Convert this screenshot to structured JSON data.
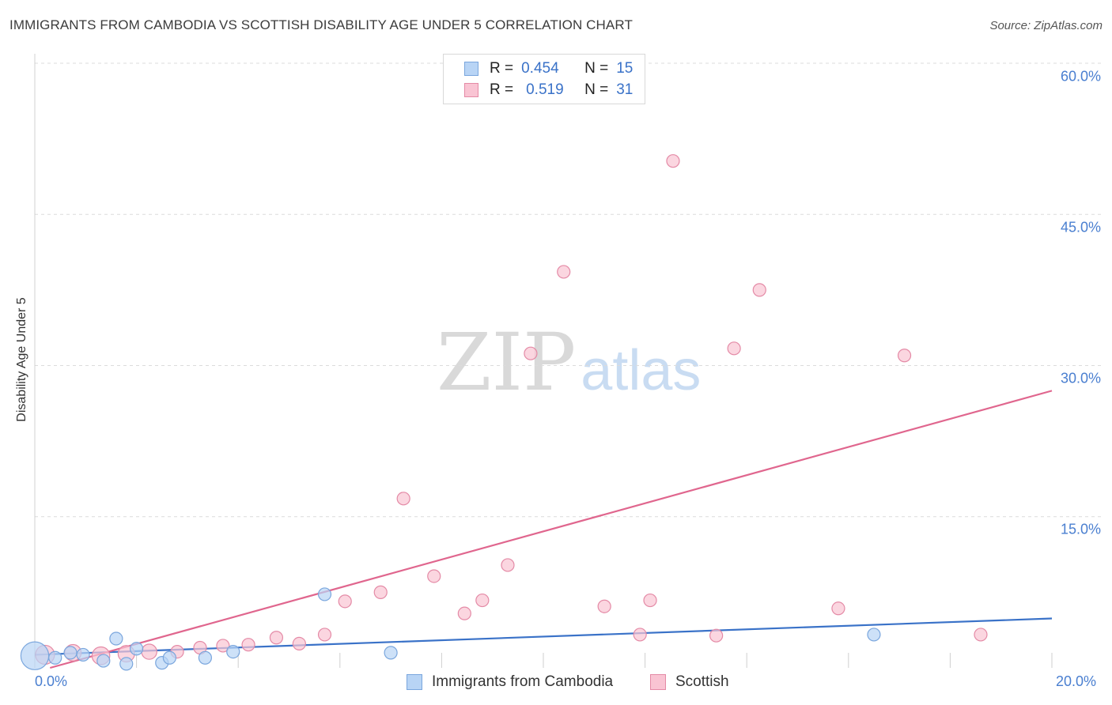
{
  "header": {
    "title": "IMMIGRANTS FROM CAMBODIA VS SCOTTISH DISABILITY AGE UNDER 5 CORRELATION CHART",
    "source": "Source: ZipAtlas.com"
  },
  "watermark": {
    "zip": "ZIP",
    "atlas": "atlas"
  },
  "legend": {
    "rows": [
      {
        "r_label": "R =",
        "r_value": "0.454",
        "n_label": "N =",
        "n_value": "15"
      },
      {
        "r_label": "R =",
        "r_value": "0.519",
        "n_label": "N =",
        "n_value": "31"
      }
    ]
  },
  "colors": {
    "blue_fill": "#b8d4f5",
    "blue_stroke": "#7aa6dd",
    "blue_line": "#3a72c8",
    "pink_fill": "#f9c4d3",
    "pink_stroke": "#e48aa6",
    "pink_line": "#e0668e",
    "grid": "#dcdcdc",
    "tick_label": "#4a7fd0"
  },
  "chart_data": {
    "type": "scatter",
    "title": "IMMIGRANTS FROM CAMBODIA VS SCOTTISH DISABILITY AGE UNDER 5 CORRELATION CHART",
    "xlabel": "",
    "ylabel": "Disability Age Under 5",
    "xlim": [
      0,
      20
    ],
    "ylim": [
      0,
      60
    ],
    "x_tick_labels": [
      "0.0%",
      "20.0%"
    ],
    "y_ticks": [
      15,
      30,
      45,
      60
    ],
    "y_tick_labels": [
      "15.0%",
      "30.0%",
      "45.0%",
      "60.0%"
    ],
    "series": [
      {
        "name": "Immigrants from Cambodia",
        "color": "blue",
        "points": [
          {
            "x": 0.0,
            "y": 1.2,
            "s": 2.2
          },
          {
            "x": 0.4,
            "y": 1.0,
            "s": 1
          },
          {
            "x": 0.7,
            "y": 1.5,
            "s": 1
          },
          {
            "x": 0.95,
            "y": 1.3,
            "s": 1
          },
          {
            "x": 1.35,
            "y": 0.7,
            "s": 1
          },
          {
            "x": 1.6,
            "y": 2.9,
            "s": 1
          },
          {
            "x": 1.8,
            "y": 0.4,
            "s": 1
          },
          {
            "x": 2.0,
            "y": 1.9,
            "s": 1
          },
          {
            "x": 2.5,
            "y": 0.5,
            "s": 1
          },
          {
            "x": 2.65,
            "y": 1.0,
            "s": 1
          },
          {
            "x": 3.35,
            "y": 1.0,
            "s": 1
          },
          {
            "x": 3.9,
            "y": 1.6,
            "s": 1
          },
          {
            "x": 5.7,
            "y": 7.3,
            "s": 1
          },
          {
            "x": 7.0,
            "y": 1.5,
            "s": 1
          },
          {
            "x": 16.5,
            "y": 3.3,
            "s": 1
          }
        ],
        "trend": {
          "x": [
            0,
            20
          ],
          "y": [
            1.3,
            4.9
          ]
        }
      },
      {
        "name": "Scottish",
        "color": "pink",
        "points": [
          {
            "x": 0.2,
            "y": 1.3,
            "s": 1.5
          },
          {
            "x": 0.75,
            "y": 1.5,
            "s": 1.3
          },
          {
            "x": 1.3,
            "y": 1.2,
            "s": 1.4
          },
          {
            "x": 1.8,
            "y": 1.4,
            "s": 1.3
          },
          {
            "x": 2.25,
            "y": 1.6,
            "s": 1.2
          },
          {
            "x": 2.8,
            "y": 1.6,
            "s": 1
          },
          {
            "x": 3.25,
            "y": 2.0,
            "s": 1
          },
          {
            "x": 3.7,
            "y": 2.2,
            "s": 1
          },
          {
            "x": 4.2,
            "y": 2.3,
            "s": 1
          },
          {
            "x": 4.75,
            "y": 3.0,
            "s": 1
          },
          {
            "x": 5.2,
            "y": 2.4,
            "s": 1
          },
          {
            "x": 5.7,
            "y": 3.3,
            "s": 1
          },
          {
            "x": 6.1,
            "y": 6.6,
            "s": 1
          },
          {
            "x": 6.8,
            "y": 7.5,
            "s": 1
          },
          {
            "x": 7.25,
            "y": 16.8,
            "s": 1
          },
          {
            "x": 7.85,
            "y": 9.1,
            "s": 1
          },
          {
            "x": 8.45,
            "y": 5.4,
            "s": 1
          },
          {
            "x": 8.8,
            "y": 6.7,
            "s": 1
          },
          {
            "x": 9.3,
            "y": 10.2,
            "s": 1
          },
          {
            "x": 9.75,
            "y": 31.2,
            "s": 1
          },
          {
            "x": 10.4,
            "y": 39.3,
            "s": 1
          },
          {
            "x": 11.2,
            "y": 6.1,
            "s": 1
          },
          {
            "x": 11.9,
            "y": 3.3,
            "s": 1
          },
          {
            "x": 12.1,
            "y": 6.7,
            "s": 1
          },
          {
            "x": 12.55,
            "y": 50.3,
            "s": 1
          },
          {
            "x": 13.4,
            "y": 3.2,
            "s": 1
          },
          {
            "x": 13.75,
            "y": 31.7,
            "s": 1
          },
          {
            "x": 14.25,
            "y": 37.5,
            "s": 1
          },
          {
            "x": 15.8,
            "y": 5.9,
            "s": 1
          },
          {
            "x": 17.1,
            "y": 31.0,
            "s": 1
          },
          {
            "x": 18.6,
            "y": 3.3,
            "s": 1
          }
        ],
        "trend": {
          "x": [
            0.3,
            20
          ],
          "y": [
            0.0,
            27.5
          ]
        }
      }
    ]
  }
}
